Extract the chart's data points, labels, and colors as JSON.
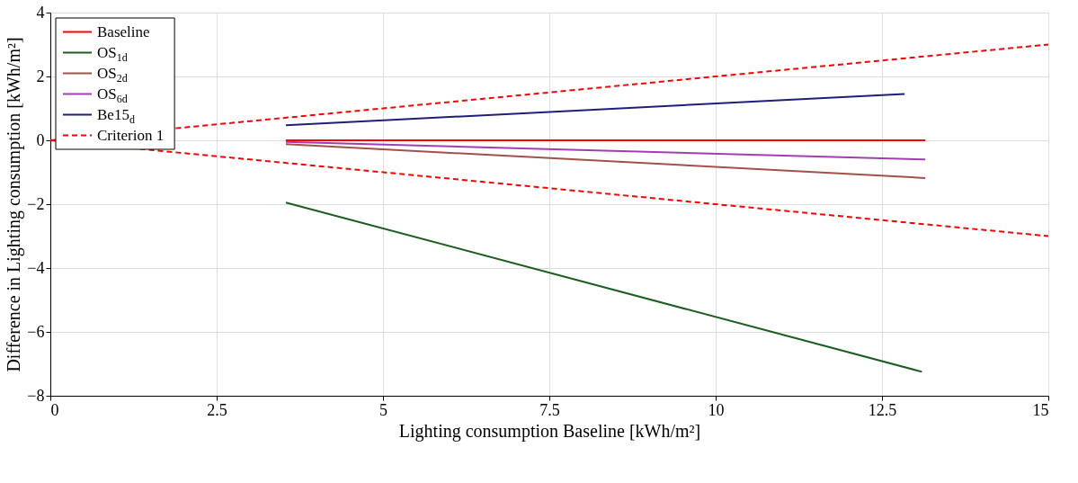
{
  "chart_data": {
    "type": "line",
    "xlabel": "Lighting consumption Baseline [kWh/m²]",
    "ylabel": "Difference in Lighting consumption [kWh/m²]",
    "xlim": [
      0,
      15
    ],
    "ylim": [
      -8,
      4
    ],
    "xticks": [
      0,
      2.5,
      5,
      7.5,
      10,
      12.5,
      15
    ],
    "yticks": [
      -8,
      -6,
      -4,
      -2,
      0,
      2,
      4
    ],
    "grid": true,
    "legend": "top left",
    "marker": "none",
    "series": [
      {
        "name": "Baseline",
        "color": "#ff0000",
        "x": [
          3.54,
          13.15
        ],
        "values": [
          0,
          0
        ]
      },
      {
        "name": "OS$_{1d}$",
        "color": "#1b5e20",
        "x": [
          3.54,
          13.1
        ],
        "values": [
          -1.95,
          -7.25
        ]
      },
      {
        "name": "OS$_{2d}$",
        "color": "#a0524a",
        "x": [
          3.54,
          13.15
        ],
        "values": [
          -0.12,
          -1.18
        ]
      },
      {
        "name": "OS$_{6d}$",
        "color": "#a040b0",
        "x": [
          3.54,
          13.15
        ],
        "values": [
          -0.05,
          -0.6
        ]
      },
      {
        "name": "Be15$_{d}$",
        "color": "#1f1f7a",
        "x": [
          3.54,
          12.84
        ],
        "values": [
          0.47,
          1.45
        ]
      },
      {
        "name": "Criterion 1",
        "color": "#ff0000",
        "line_style": "dashed",
        "x": [
          0,
          15
        ],
        "values": [
          0,
          3
        ]
      },
      {
        "color": "#ff0000",
        "line_style": "dashed",
        "x": [
          0,
          15
        ],
        "values": [
          0,
          -3
        ]
      }
    ]
  }
}
